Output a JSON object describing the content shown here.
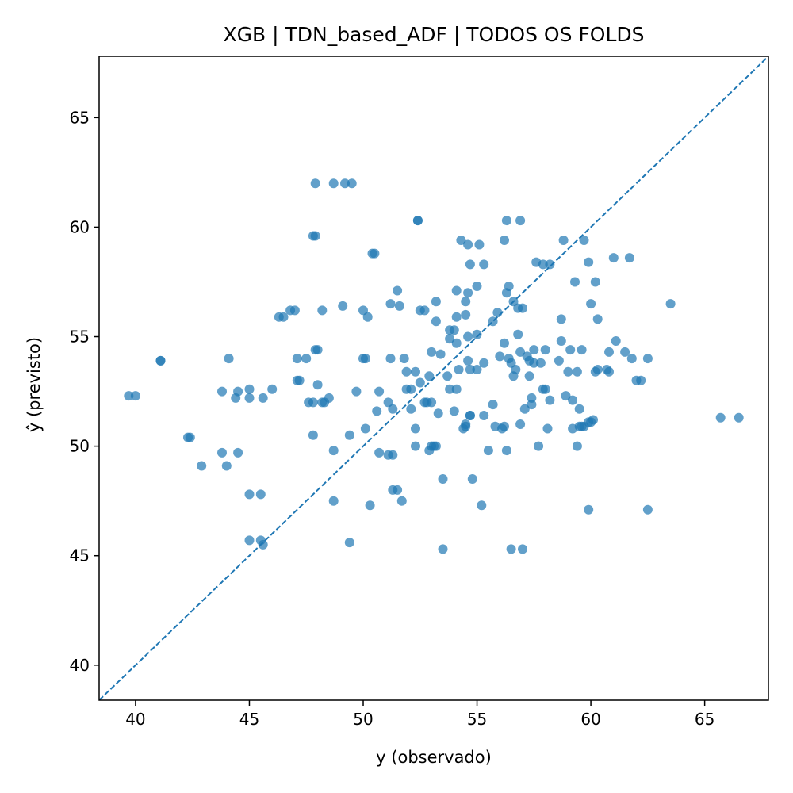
{
  "chart_data": {
    "type": "scatter",
    "title": "XGB | TDN_based_ADF | TODOS OS FOLDS",
    "xlabel": "y (observado)",
    "ylabel": "ŷ (previsto)",
    "xlim": [
      38.4,
      67.8
    ],
    "ylim": [
      38.4,
      67.8
    ],
    "xticks": [
      40,
      45,
      50,
      55,
      60,
      65
    ],
    "yticks": [
      40,
      45,
      50,
      55,
      60,
      65
    ],
    "grid": false,
    "reference_line": {
      "style": "dashed",
      "from": [
        38.4,
        38.4
      ],
      "to": [
        67.8,
        67.8
      ]
    },
    "colors": {
      "points": "#1f77b4",
      "line": "#1f77b4"
    },
    "points": [
      [
        39.7,
        52.3
      ],
      [
        40.0,
        52.3
      ],
      [
        41.1,
        53.9
      ],
      [
        41.1,
        53.9
      ],
      [
        42.3,
        50.4
      ],
      [
        42.4,
        50.4
      ],
      [
        42.9,
        49.1
      ],
      [
        43.8,
        52.5
      ],
      [
        43.8,
        49.7
      ],
      [
        44.0,
        49.1
      ],
      [
        44.1,
        54.0
      ],
      [
        44.4,
        52.2
      ],
      [
        44.5,
        52.5
      ],
      [
        44.5,
        49.7
      ],
      [
        45.0,
        52.6
      ],
      [
        45.0,
        52.2
      ],
      [
        45.0,
        47.8
      ],
      [
        45.0,
        45.7
      ],
      [
        45.5,
        47.8
      ],
      [
        45.5,
        45.7
      ],
      [
        45.6,
        45.5
      ],
      [
        45.6,
        52.2
      ],
      [
        46.0,
        52.6
      ],
      [
        46.3,
        55.9
      ],
      [
        46.5,
        55.9
      ],
      [
        46.8,
        56.2
      ],
      [
        47.0,
        56.2
      ],
      [
        47.1,
        53.0
      ],
      [
        47.1,
        54.0
      ],
      [
        47.2,
        53.0
      ],
      [
        47.5,
        54.0
      ],
      [
        47.6,
        52.0
      ],
      [
        47.8,
        59.6
      ],
      [
        47.8,
        52.0
      ],
      [
        47.8,
        50.5
      ],
      [
        47.9,
        59.6
      ],
      [
        47.9,
        54.4
      ],
      [
        47.9,
        62.0
      ],
      [
        48.0,
        52.8
      ],
      [
        48.0,
        54.4
      ],
      [
        48.2,
        56.2
      ],
      [
        48.2,
        52.0
      ],
      [
        48.3,
        52.0
      ],
      [
        48.5,
        52.2
      ],
      [
        48.7,
        62.0
      ],
      [
        48.7,
        49.8
      ],
      [
        48.7,
        47.5
      ],
      [
        49.1,
        56.4
      ],
      [
        49.2,
        62.0
      ],
      [
        49.5,
        62.0
      ],
      [
        49.4,
        45.6
      ],
      [
        49.4,
        50.5
      ],
      [
        49.7,
        52.5
      ],
      [
        50.0,
        54.0
      ],
      [
        50.0,
        56.2
      ],
      [
        50.1,
        54.0
      ],
      [
        50.1,
        50.8
      ],
      [
        50.2,
        55.9
      ],
      [
        50.3,
        47.3
      ],
      [
        50.4,
        58.8
      ],
      [
        50.5,
        58.8
      ],
      [
        50.6,
        51.6
      ],
      [
        50.7,
        52.5
      ],
      [
        50.7,
        49.7
      ],
      [
        51.1,
        49.6
      ],
      [
        51.1,
        52.0
      ],
      [
        51.2,
        54.0
      ],
      [
        51.2,
        56.5
      ],
      [
        51.3,
        48.0
      ],
      [
        51.3,
        49.6
      ],
      [
        51.3,
        51.7
      ],
      [
        51.5,
        57.1
      ],
      [
        51.5,
        48.0
      ],
      [
        51.6,
        56.4
      ],
      [
        51.7,
        47.5
      ],
      [
        51.8,
        54.0
      ],
      [
        51.9,
        52.6
      ],
      [
        51.9,
        53.4
      ],
      [
        52.1,
        51.7
      ],
      [
        52.1,
        52.6
      ],
      [
        52.3,
        50.0
      ],
      [
        52.3,
        50.8
      ],
      [
        52.3,
        53.4
      ],
      [
        52.4,
        60.3
      ],
      [
        52.4,
        60.3
      ],
      [
        52.5,
        52.9
      ],
      [
        52.5,
        56.2
      ],
      [
        52.7,
        56.2
      ],
      [
        52.7,
        52.0
      ],
      [
        52.8,
        52.0
      ],
      [
        52.9,
        53.2
      ],
      [
        52.9,
        49.8
      ],
      [
        53.0,
        54.3
      ],
      [
        53.0,
        50.0
      ],
      [
        53.0,
        52.0
      ],
      [
        53.1,
        50.0
      ],
      [
        53.2,
        50.0
      ],
      [
        53.2,
        55.7
      ],
      [
        53.2,
        56.6
      ],
      [
        53.3,
        51.5
      ],
      [
        53.4,
        54.2
      ],
      [
        53.5,
        48.5
      ],
      [
        53.5,
        45.3
      ],
      [
        53.7,
        53.2
      ],
      [
        53.8,
        54.9
      ],
      [
        53.8,
        55.3
      ],
      [
        53.8,
        52.6
      ],
      [
        54.0,
        55.3
      ],
      [
        54.0,
        51.6
      ],
      [
        54.1,
        57.1
      ],
      [
        54.1,
        52.6
      ],
      [
        54.1,
        54.7
      ],
      [
        54.1,
        55.9
      ],
      [
        54.2,
        53.5
      ],
      [
        54.3,
        59.4
      ],
      [
        54.4,
        50.8
      ],
      [
        54.5,
        51.0
      ],
      [
        54.5,
        50.9
      ],
      [
        54.5,
        56.0
      ],
      [
        54.5,
        56.6
      ],
      [
        54.6,
        57.0
      ],
      [
        54.6,
        55.0
      ],
      [
        54.6,
        53.9
      ],
      [
        54.6,
        59.2
      ],
      [
        54.7,
        58.3
      ],
      [
        54.7,
        53.5
      ],
      [
        54.7,
        51.4
      ],
      [
        54.7,
        51.4
      ],
      [
        54.8,
        48.5
      ],
      [
        55.0,
        57.3
      ],
      [
        55.0,
        53.5
      ],
      [
        55.0,
        55.1
      ],
      [
        55.1,
        59.2
      ],
      [
        55.2,
        47.3
      ],
      [
        55.3,
        53.8
      ],
      [
        55.3,
        51.4
      ],
      [
        55.3,
        58.3
      ],
      [
        55.5,
        49.8
      ],
      [
        55.7,
        51.9
      ],
      [
        55.7,
        55.7
      ],
      [
        55.8,
        50.9
      ],
      [
        55.9,
        56.1
      ],
      [
        56.0,
        54.1
      ],
      [
        56.1,
        50.8
      ],
      [
        56.2,
        50.9
      ],
      [
        56.2,
        59.4
      ],
      [
        56.2,
        54.7
      ],
      [
        56.3,
        57.0
      ],
      [
        56.3,
        60.3
      ],
      [
        56.3,
        49.8
      ],
      [
        56.4,
        57.3
      ],
      [
        56.4,
        54.0
      ],
      [
        56.5,
        53.8
      ],
      [
        56.5,
        45.3
      ],
      [
        56.6,
        56.6
      ],
      [
        56.6,
        53.2
      ],
      [
        56.7,
        53.5
      ],
      [
        56.8,
        56.3
      ],
      [
        56.8,
        55.1
      ],
      [
        56.9,
        60.3
      ],
      [
        56.9,
        54.3
      ],
      [
        56.9,
        51.0
      ],
      [
        57.0,
        45.3
      ],
      [
        57.0,
        56.3
      ],
      [
        57.1,
        51.7
      ],
      [
        57.2,
        54.1
      ],
      [
        57.3,
        53.9
      ],
      [
        57.3,
        53.2
      ],
      [
        57.4,
        51.9
      ],
      [
        57.4,
        52.2
      ],
      [
        57.5,
        53.8
      ],
      [
        57.5,
        54.4
      ],
      [
        57.6,
        58.4
      ],
      [
        57.7,
        50.0
      ],
      [
        57.8,
        53.8
      ],
      [
        57.9,
        58.3
      ],
      [
        57.9,
        52.6
      ],
      [
        58.0,
        54.4
      ],
      [
        58.0,
        52.6
      ],
      [
        58.1,
        50.8
      ],
      [
        58.2,
        58.3
      ],
      [
        58.2,
        52.1
      ],
      [
        58.6,
        53.9
      ],
      [
        58.7,
        54.8
      ],
      [
        58.7,
        55.8
      ],
      [
        58.8,
        59.4
      ],
      [
        58.9,
        52.3
      ],
      [
        59.0,
        53.4
      ],
      [
        59.1,
        54.4
      ],
      [
        59.2,
        52.1
      ],
      [
        59.2,
        50.8
      ],
      [
        59.3,
        57.5
      ],
      [
        59.4,
        53.4
      ],
      [
        59.4,
        50.0
      ],
      [
        59.5,
        51.7
      ],
      [
        59.5,
        50.9
      ],
      [
        59.6,
        54.4
      ],
      [
        59.6,
        50.9
      ],
      [
        59.7,
        59.4
      ],
      [
        59.7,
        50.9
      ],
      [
        59.9,
        58.4
      ],
      [
        59.9,
        47.1
      ],
      [
        59.9,
        51.1
      ],
      [
        60.0,
        56.5
      ],
      [
        60.0,
        51.1
      ],
      [
        60.1,
        51.2
      ],
      [
        60.2,
        57.5
      ],
      [
        60.2,
        53.4
      ],
      [
        60.3,
        55.8
      ],
      [
        60.3,
        53.5
      ],
      [
        60.7,
        53.5
      ],
      [
        60.8,
        54.3
      ],
      [
        60.8,
        53.4
      ],
      [
        61.0,
        58.6
      ],
      [
        61.1,
        54.8
      ],
      [
        61.5,
        54.3
      ],
      [
        61.7,
        58.6
      ],
      [
        61.8,
        54.0
      ],
      [
        62.0,
        53.0
      ],
      [
        62.2,
        53.0
      ],
      [
        62.5,
        47.1
      ],
      [
        62.5,
        54.0
      ],
      [
        63.5,
        56.5
      ],
      [
        65.7,
        51.3
      ],
      [
        66.5,
        51.3
      ]
    ]
  }
}
